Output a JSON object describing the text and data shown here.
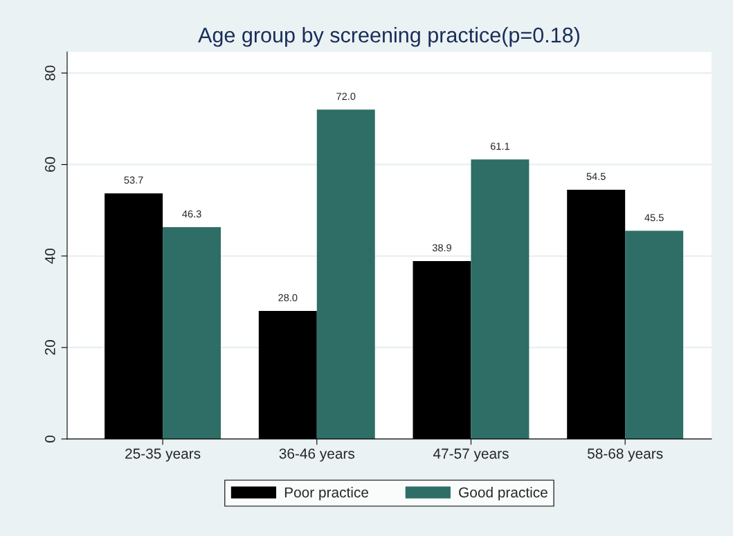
{
  "chart_data": {
    "type": "bar",
    "title": "Age group by screening practice(p=0.18)",
    "categories": [
      "25-35 years",
      "36-46 years",
      "47-57 years",
      "58-68 years"
    ],
    "series": [
      {
        "name": "Poor practice",
        "color": "#000000",
        "values": [
          53.7,
          28.0,
          38.9,
          54.5
        ],
        "value_labels": [
          "53.7",
          "28.0",
          "38.9",
          "54.5"
        ]
      },
      {
        "name": "Good practice",
        "color": "#2e6e66",
        "values": [
          46.3,
          72.0,
          61.1,
          45.5
        ],
        "value_labels": [
          "46.3",
          "72.0",
          "61.1",
          "45.5"
        ]
      }
    ],
    "ylim": [
      0,
      84.6
    ],
    "yticks": [
      0,
      20,
      40,
      60,
      80
    ],
    "grid": "y",
    "legend": "bottom"
  }
}
